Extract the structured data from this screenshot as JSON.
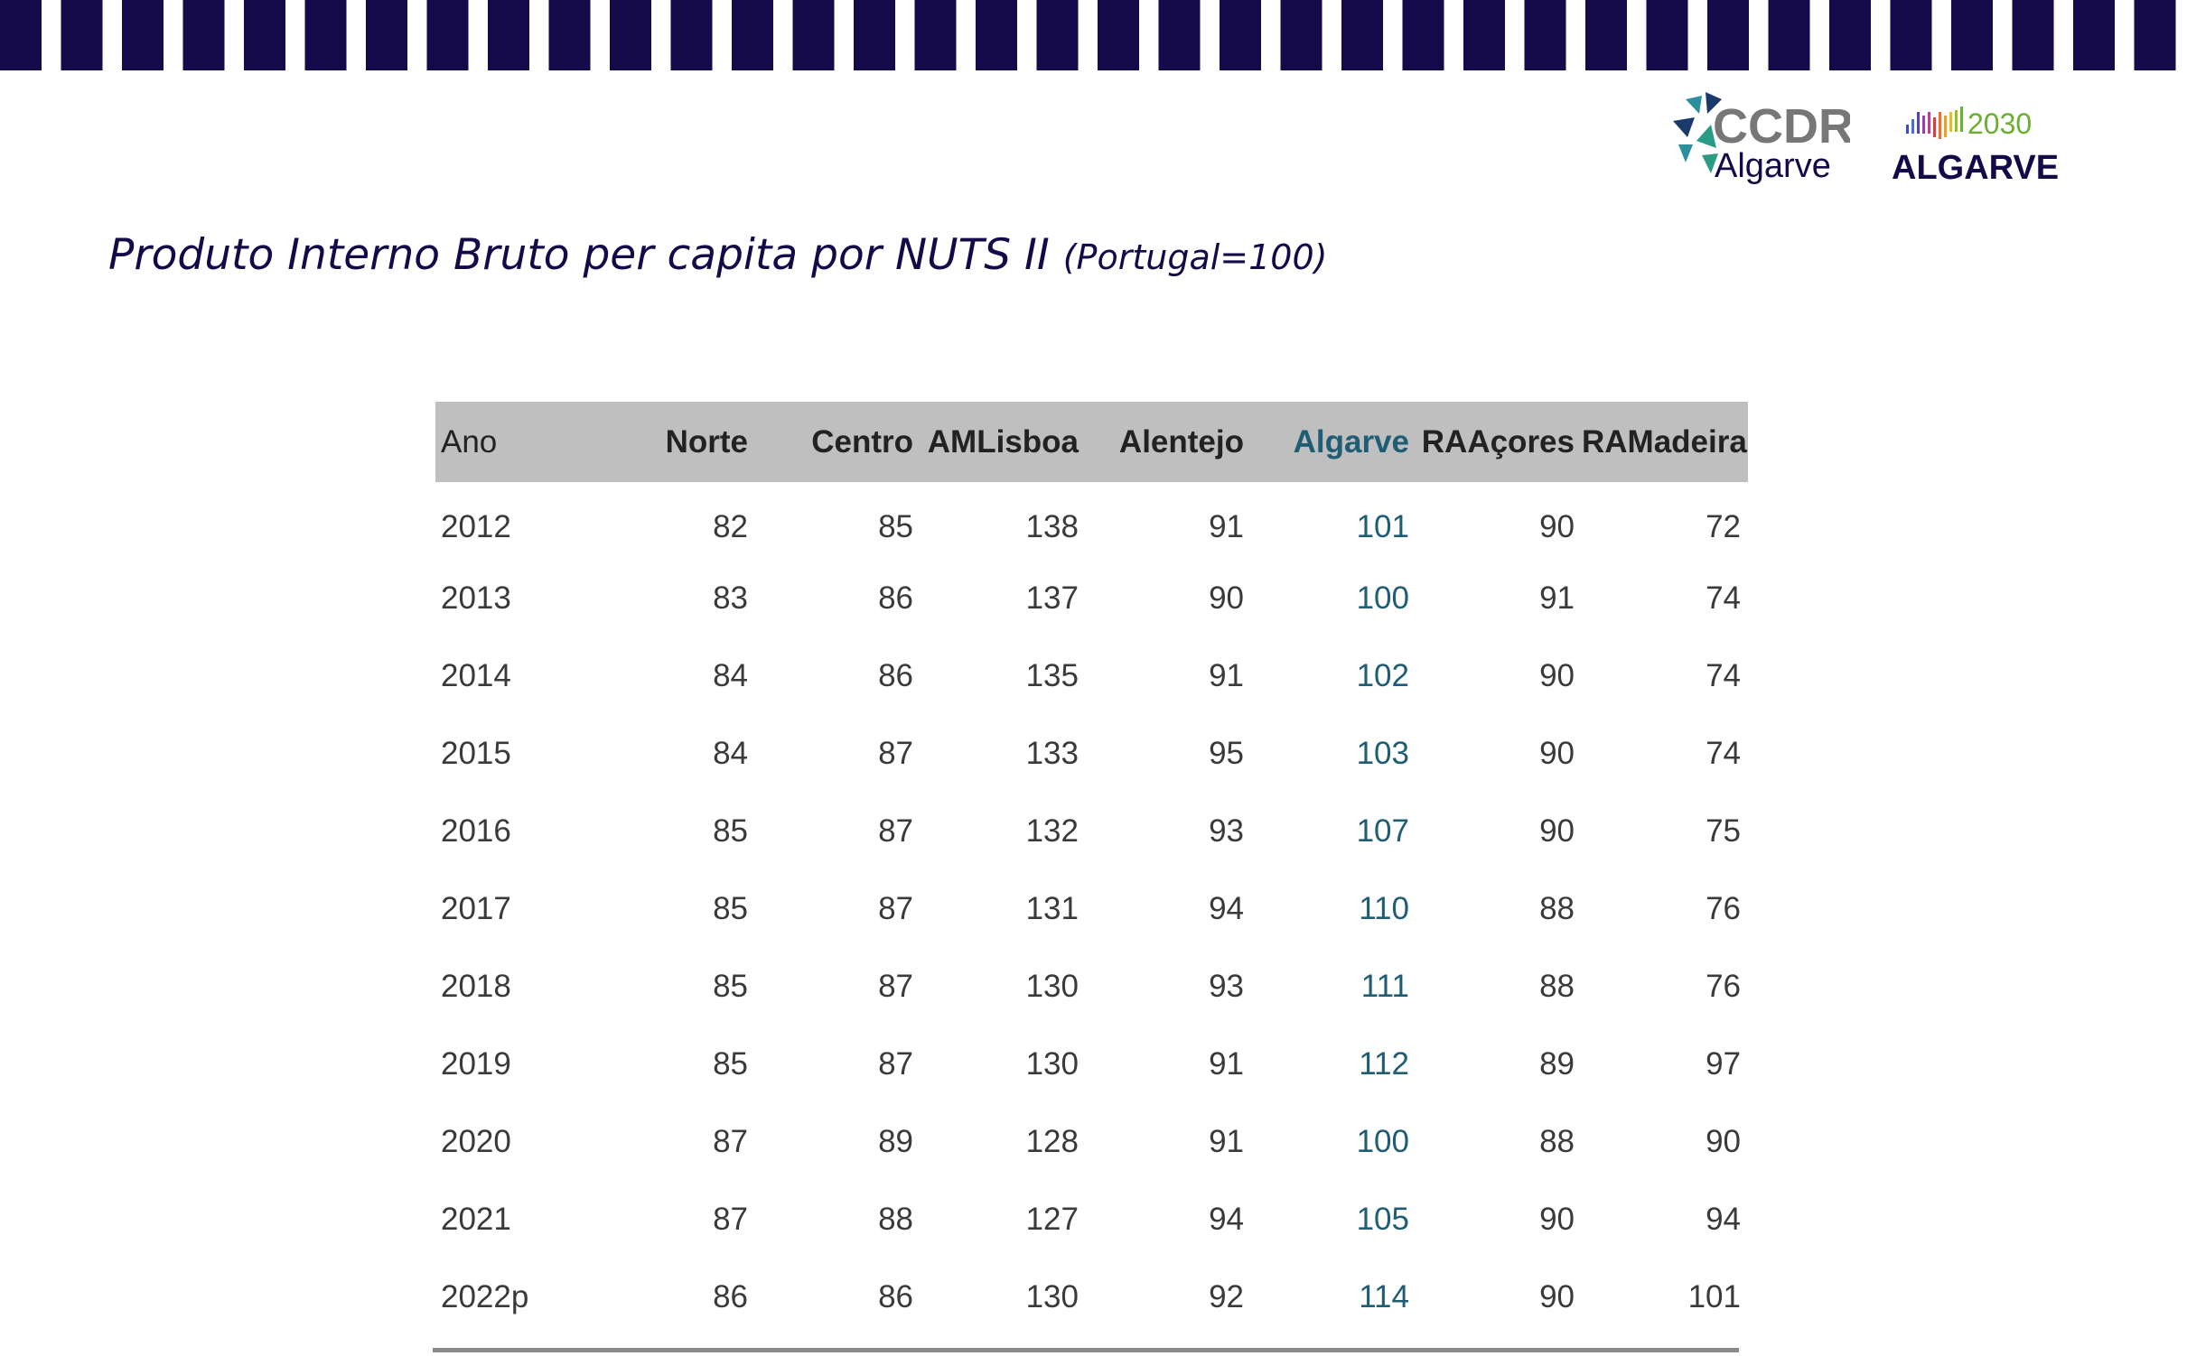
{
  "logos": {
    "ccdr": {
      "line1": "CCDR",
      "line2": "Algarve"
    },
    "algarve2030": {
      "year": "2030",
      "name": "ALGARVE"
    }
  },
  "heading": {
    "title": "Produto Interno Bruto per capita por NUTS II",
    "subtitle": "(Portugal=100)"
  },
  "table": {
    "headers": [
      "Ano",
      "Norte",
      "Centro",
      "AMLisboa",
      "Alentejo",
      "Algarve",
      "RAAçores",
      "RAMadeira"
    ],
    "rows": [
      [
        "2012",
        "82",
        "85",
        "138",
        "91",
        "101",
        "90",
        "72"
      ],
      [
        "2013",
        "83",
        "86",
        "137",
        "90",
        "100",
        "91",
        "74"
      ],
      [
        "2014",
        "84",
        "86",
        "135",
        "91",
        "102",
        "90",
        "74"
      ],
      [
        "2015",
        "84",
        "87",
        "133",
        "95",
        "103",
        "90",
        "74"
      ],
      [
        "2016",
        "85",
        "87",
        "132",
        "93",
        "107",
        "90",
        "75"
      ],
      [
        "2017",
        "85",
        "87",
        "131",
        "94",
        "110",
        "88",
        "76"
      ],
      [
        "2018",
        "85",
        "87",
        "130",
        "93",
        "111",
        "88",
        "76"
      ],
      [
        "2019",
        "85",
        "87",
        "130",
        "91",
        "112",
        "89",
        "97"
      ],
      [
        "2020",
        "87",
        "89",
        "128",
        "91",
        "100",
        "88",
        "90"
      ],
      [
        "2021",
        "87",
        "88",
        "127",
        "94",
        "105",
        "90",
        "94"
      ],
      [
        "2022p",
        "86",
        "86",
        "130",
        "92",
        "114",
        "90",
        "101"
      ]
    ]
  },
  "colors": {
    "navy": "#150a49",
    "highlight": "#1f5d75",
    "header_bg": "#bfbfbf"
  }
}
